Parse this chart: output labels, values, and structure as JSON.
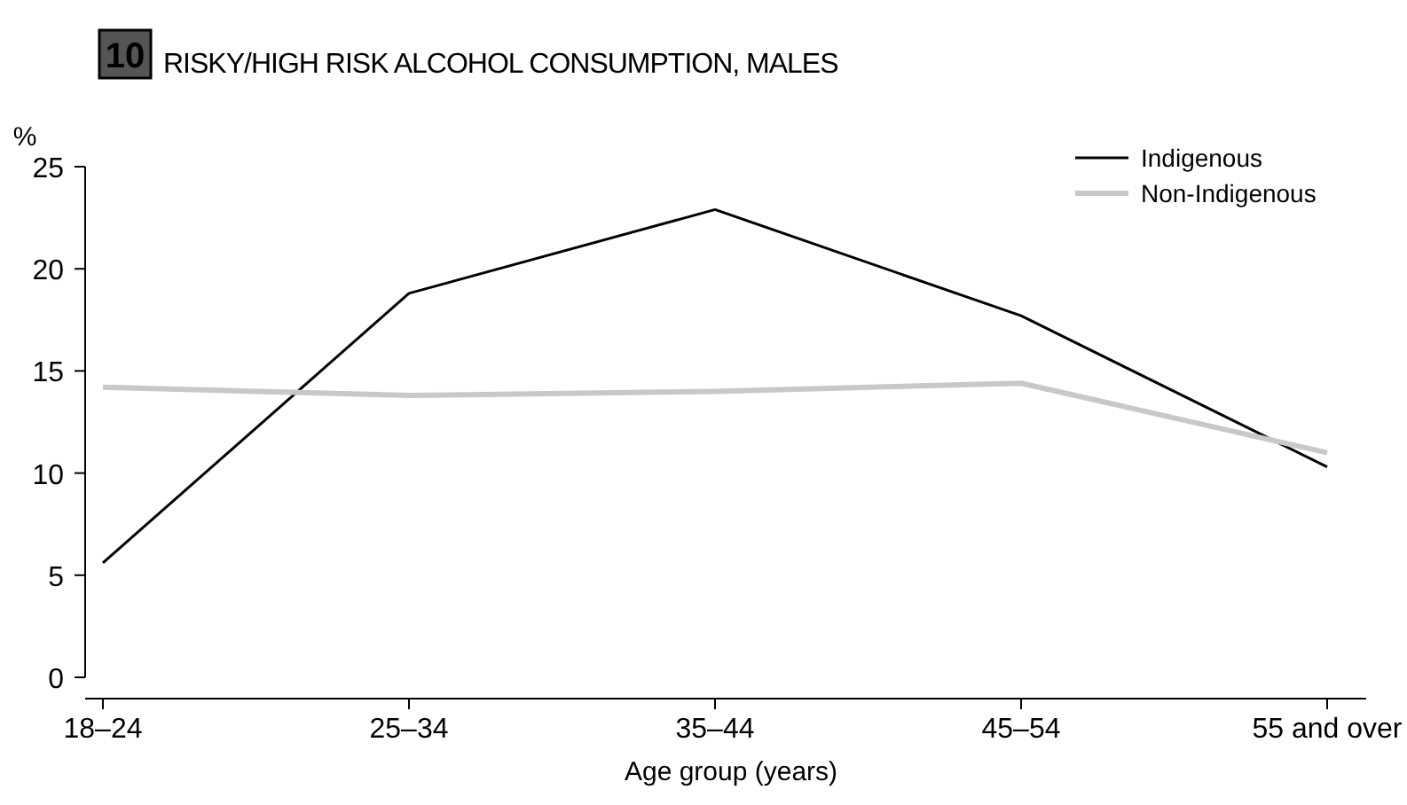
{
  "chart_data": {
    "type": "line",
    "title": "RISKY/HIGH RISK ALCOHOL CONSUMPTION, MALES",
    "annotations": [
      "10"
    ],
    "xlabel": "Age group (years)",
    "ylabel": "%",
    "categories": [
      "18–24",
      "25–34",
      "35–44",
      "45–54",
      "55 and over"
    ],
    "series": [
      {
        "name": "Indigenous",
        "color": "#000000",
        "values": [
          5.6,
          18.8,
          22.9,
          17.7,
          10.3
        ]
      },
      {
        "name": "Non-Indigenous",
        "color": "#c8c8c8",
        "values": [
          14.2,
          13.8,
          14.0,
          14.4,
          11.0
        ]
      }
    ],
    "ylim": [
      0,
      25
    ],
    "yticks": [
      0,
      5,
      10,
      15,
      20,
      25
    ],
    "grid": false,
    "legend": "top right",
    "marker": "none",
    "line_style": "solid"
  }
}
